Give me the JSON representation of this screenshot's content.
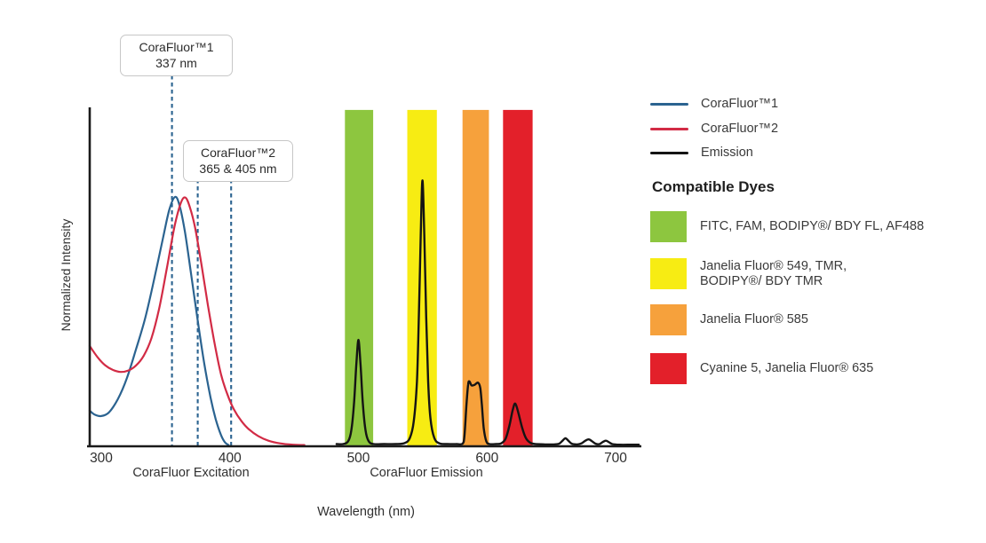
{
  "chart_data": {
    "type": "line",
    "xlabel": "Wavelength (nm)",
    "ylabel": "Normalized Intensity",
    "x_ticks": [
      300,
      400,
      500,
      600,
      700
    ],
    "xlim": [
      291,
      720
    ],
    "ylim": [
      0,
      1.05
    ],
    "grid": false,
    "legend_position": "right",
    "axis_section_labels": [
      "CoraFluor Excitation",
      "CoraFluor Emission"
    ],
    "excitation_markers": [
      {
        "label": "CoraFluor™1",
        "value_label": "337 nm",
        "drawn_at_nm": [
          355
        ]
      },
      {
        "label": "CoraFluor™2",
        "value_label": "365 & 405 nm",
        "drawn_at_nm": [
          375,
          401
        ]
      }
    ],
    "bands": [
      {
        "name": "green-band",
        "range_nm": [
          489.5,
          511.5
        ],
        "top": 0.995,
        "color": "#8DC63F"
      },
      {
        "name": "yellow-band",
        "range_nm": [
          538,
          561
        ],
        "top": 0.995,
        "color": "#F7EC13"
      },
      {
        "name": "orange-band",
        "range_nm": [
          581,
          601.5
        ],
        "top": 0.995,
        "color": "#F6A13C"
      },
      {
        "name": "red-band",
        "range_nm": [
          612.5,
          635.5
        ],
        "top": 0.995,
        "color": "#E3202A"
      }
    ],
    "series": [
      {
        "key": "corafluor1",
        "name": "CoraFluor™1",
        "color": "#2B6390",
        "points": [
          [
            291,
            0.103
          ],
          [
            295,
            0.091
          ],
          [
            300,
            0.087
          ],
          [
            306,
            0.098
          ],
          [
            313,
            0.138
          ],
          [
            320,
            0.2
          ],
          [
            327,
            0.285
          ],
          [
            334,
            0.375
          ],
          [
            341,
            0.49
          ],
          [
            348,
            0.615
          ],
          [
            353,
            0.7
          ],
          [
            357.5,
            0.737
          ],
          [
            361,
            0.71
          ],
          [
            365,
            0.635
          ],
          [
            370,
            0.505
          ],
          [
            375,
            0.37
          ],
          [
            380,
            0.245
          ],
          [
            385,
            0.142
          ],
          [
            389,
            0.078
          ],
          [
            393,
            0.032
          ],
          [
            396,
            0.01
          ],
          [
            399,
            0.001
          ]
        ]
      },
      {
        "key": "corafluor2",
        "name": "CoraFluor™2",
        "color": "#D22B45",
        "points": [
          [
            291,
            0.295
          ],
          [
            297,
            0.262
          ],
          [
            303,
            0.238
          ],
          [
            309,
            0.224
          ],
          [
            315,
            0.218
          ],
          [
            321,
            0.222
          ],
          [
            327,
            0.237
          ],
          [
            333,
            0.266
          ],
          [
            339,
            0.318
          ],
          [
            345,
            0.405
          ],
          [
            351,
            0.525
          ],
          [
            357,
            0.65
          ],
          [
            362,
            0.72
          ],
          [
            365.5,
            0.735
          ],
          [
            369,
            0.705
          ],
          [
            373,
            0.645
          ],
          [
            378,
            0.535
          ],
          [
            383,
            0.415
          ],
          [
            388,
            0.305
          ],
          [
            393,
            0.213
          ],
          [
            398,
            0.152
          ],
          [
            403,
            0.108
          ],
          [
            409,
            0.072
          ],
          [
            415,
            0.047
          ],
          [
            422,
            0.028
          ],
          [
            430,
            0.014
          ],
          [
            439,
            0.006
          ],
          [
            449,
            0.002
          ],
          [
            458,
            0.001
          ]
        ]
      },
      {
        "key": "emission",
        "name": "Emission",
        "color": "#141414",
        "points": [
          [
            483,
            0.004
          ],
          [
            488,
            0.004
          ],
          [
            492,
            0.012
          ],
          [
            494.5,
            0.045
          ],
          [
            496.5,
            0.12
          ],
          [
            498.3,
            0.235
          ],
          [
            500,
            0.313
          ],
          [
            501.7,
            0.235
          ],
          [
            503.5,
            0.12
          ],
          [
            505.5,
            0.045
          ],
          [
            508,
            0.012
          ],
          [
            512,
            0.004
          ],
          [
            520,
            0.004
          ],
          [
            529,
            0.004
          ],
          [
            536,
            0.007
          ],
          [
            540,
            0.022
          ],
          [
            543,
            0.07
          ],
          [
            545.5,
            0.19
          ],
          [
            547,
            0.38
          ],
          [
            548.5,
            0.63
          ],
          [
            549.8,
            0.786
          ],
          [
            551.2,
            0.63
          ],
          [
            552.7,
            0.38
          ],
          [
            554.2,
            0.19
          ],
          [
            556,
            0.08
          ],
          [
            559,
            0.022
          ],
          [
            563,
            0.006
          ],
          [
            569,
            0.004
          ],
          [
            576,
            0.004
          ],
          [
            581,
            0.005
          ],
          [
            582.5,
            0.03
          ],
          [
            584,
            0.12
          ],
          [
            585.3,
            0.18
          ],
          [
            586.3,
            0.19
          ],
          [
            588,
            0.178
          ],
          [
            590.5,
            0.18
          ],
          [
            593,
            0.186
          ],
          [
            594.8,
            0.17
          ],
          [
            596,
            0.12
          ],
          [
            597.5,
            0.05
          ],
          [
            599.5,
            0.012
          ],
          [
            602,
            0.004
          ],
          [
            607,
            0.004
          ],
          [
            611,
            0.006
          ],
          [
            614.5,
            0.02
          ],
          [
            617.5,
            0.06
          ],
          [
            620,
            0.105
          ],
          [
            622,
            0.124
          ],
          [
            624.5,
            0.095
          ],
          [
            627.5,
            0.05
          ],
          [
            630.5,
            0.02
          ],
          [
            634,
            0.007
          ],
          [
            638,
            0.004
          ],
          [
            645,
            0.003
          ],
          [
            652,
            0.003
          ],
          [
            656,
            0.005
          ],
          [
            658.5,
            0.013
          ],
          [
            661,
            0.021
          ],
          [
            663.5,
            0.013
          ],
          [
            666,
            0.005
          ],
          [
            670,
            0.003
          ],
          [
            673.5,
            0.006
          ],
          [
            676.5,
            0.014
          ],
          [
            679,
            0.018
          ],
          [
            681.5,
            0.013
          ],
          [
            684.5,
            0.005
          ],
          [
            687.5,
            0.004
          ],
          [
            690,
            0.01
          ],
          [
            692.5,
            0.014
          ],
          [
            695,
            0.009
          ],
          [
            697.5,
            0.004
          ],
          [
            703,
            0.002
          ],
          [
            712,
            0.002
          ],
          [
            718,
            0.002
          ]
        ]
      }
    ]
  },
  "legend": {
    "compatible_dyes_title": "Compatible Dyes",
    "dyes": [
      {
        "key": "green",
        "color": "#8DC63F",
        "lines": [
          "FITC, FAM, BODIPY®/ BDY FL, AF488"
        ]
      },
      {
        "key": "yellow",
        "color": "#F7EC13",
        "lines": [
          "Janelia Fluor® 549, TMR,",
          "BODIPY®/ BDY TMR"
        ]
      },
      {
        "key": "orange",
        "color": "#F6A13C",
        "lines": [
          "Janelia Fluor® 585"
        ]
      },
      {
        "key": "red",
        "color": "#E3202A",
        "lines": [
          "Cyanine 5, Janelia Fluor® 635"
        ]
      }
    ]
  }
}
